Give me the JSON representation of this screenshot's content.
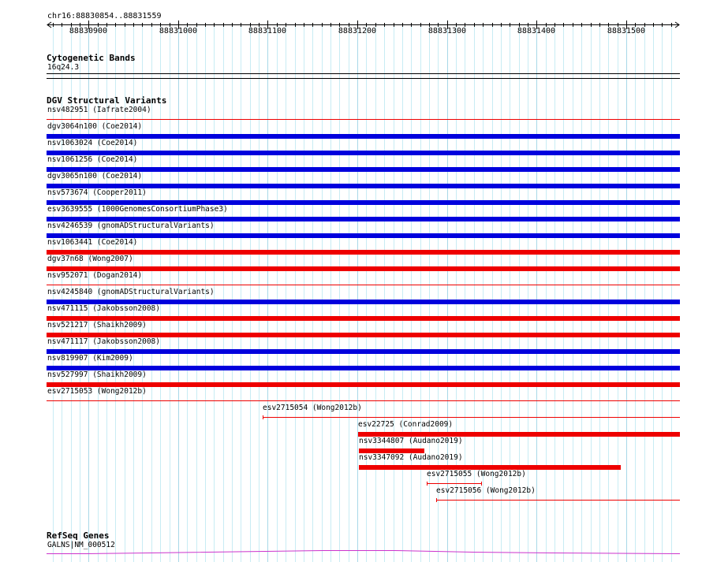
{
  "locus": "chr16:88830854..88831559",
  "ruler": {
    "start": 88830854,
    "end": 88831559,
    "tick_labels": [
      "88830900",
      "88831000",
      "88831100",
      "88831200",
      "88831300",
      "88831400",
      "88831500"
    ]
  },
  "cytoband_track": {
    "title": "Cytogenetic Bands",
    "band": "16q24.3"
  },
  "dgv_track": {
    "title": "DGV Structural Variants",
    "colors": {
      "gain": "#0000dd",
      "loss": "#ee0000"
    },
    "full_span": [
      {
        "id": "nsv482951",
        "source": "Iafrate2004",
        "label": "nsv482951 (Iafrate2004)",
        "type": "thin"
      },
      {
        "id": "dgv3064n100",
        "source": "Coe2014",
        "label": "dgv3064n100 (Coe2014)",
        "type": "gain"
      },
      {
        "id": "nsv1063024",
        "source": "Coe2014",
        "label": "nsv1063024 (Coe2014)",
        "type": "gain"
      },
      {
        "id": "nsv1061256",
        "source": "Coe2014",
        "label": "nsv1061256 (Coe2014)",
        "type": "gain"
      },
      {
        "id": "dgv3065n100",
        "source": "Coe2014",
        "label": "dgv3065n100 (Coe2014)",
        "type": "gain"
      },
      {
        "id": "nsv573674",
        "source": "Cooper2011",
        "label": "nsv573674 (Cooper2011)",
        "type": "gain"
      },
      {
        "id": "esv3639555",
        "source": "1000GenomesConsortiumPhase3",
        "label": "esv3639555 (1000GenomesConsortiumPhase3)",
        "type": "gain"
      },
      {
        "id": "nsv4246539",
        "source": "gnomADStructuralVariants",
        "label": "nsv4246539 (gnomADStructuralVariants)",
        "type": "gain"
      },
      {
        "id": "nsv1063441",
        "source": "Coe2014",
        "label": "nsv1063441 (Coe2014)",
        "type": "loss"
      },
      {
        "id": "dgv37n68",
        "source": "Wong2007",
        "label": "dgv37n68 (Wong2007)",
        "type": "loss"
      },
      {
        "id": "nsv952071",
        "source": "Dogan2014",
        "label": "nsv952071 (Dogan2014)",
        "type": "thin"
      },
      {
        "id": "nsv4245840",
        "source": "gnomADStructuralVariants",
        "label": "nsv4245840 (gnomADStructuralVariants)",
        "type": "gain"
      },
      {
        "id": "nsv471115",
        "source": "Jakobsson2008",
        "label": "nsv471115 (Jakobsson2008)",
        "type": "loss"
      },
      {
        "id": "nsv521217",
        "source": "Shaikh2009",
        "label": "nsv521217 (Shaikh2009)",
        "type": "loss"
      },
      {
        "id": "nsv471117",
        "source": "Jakobsson2008",
        "label": "nsv471117 (Jakobsson2008)",
        "type": "gain"
      },
      {
        "id": "nsv819907",
        "source": "Kim2009",
        "label": "nsv819907 (Kim2009)",
        "type": "gain"
      },
      {
        "id": "nsv527997",
        "source": "Shaikh2009",
        "label": "nsv527997 (Shaikh2009)",
        "type": "loss"
      },
      {
        "id": "esv2715053",
        "source": "Wong2012b",
        "label": "esv2715053 (Wong2012b)",
        "type": "thin"
      }
    ],
    "partial": [
      {
        "id": "esv2715054",
        "source": "Wong2012b",
        "label": "esv2715054 (Wong2012b)",
        "type": "thin",
        "start": 88831094,
        "end": 88831559
      },
      {
        "id": "esv22725",
        "source": "Conrad2009",
        "label": "esv22725 (Conrad2009)",
        "type": "loss",
        "start": 88831201,
        "end": 88831559
      },
      {
        "id": "nsv3344807",
        "source": "Audano2019",
        "label": "nsv3344807 (Audano2019)",
        "type": "loss",
        "start": 88831202,
        "end": 88831275
      },
      {
        "id": "nsv3347092",
        "source": "Audano2019",
        "label": "nsv3347092 (Audano2019)",
        "type": "loss",
        "start": 88831202,
        "end": 88831494
      },
      {
        "id": "esv2715055",
        "source": "Wong2012b",
        "label": "esv2715055 (Wong2012b)",
        "type": "thin",
        "start": 88831277,
        "end": 88831339
      },
      {
        "id": "esv2715056",
        "source": "Wong2012b",
        "label": "esv2715056 (Wong2012b)",
        "type": "thin",
        "start": 88831288,
        "end": 88831559
      }
    ]
  },
  "refseq_track": {
    "title": "RefSeq Genes",
    "gene_label": "GALNS|NM_000512",
    "color": "#cc33cc"
  }
}
